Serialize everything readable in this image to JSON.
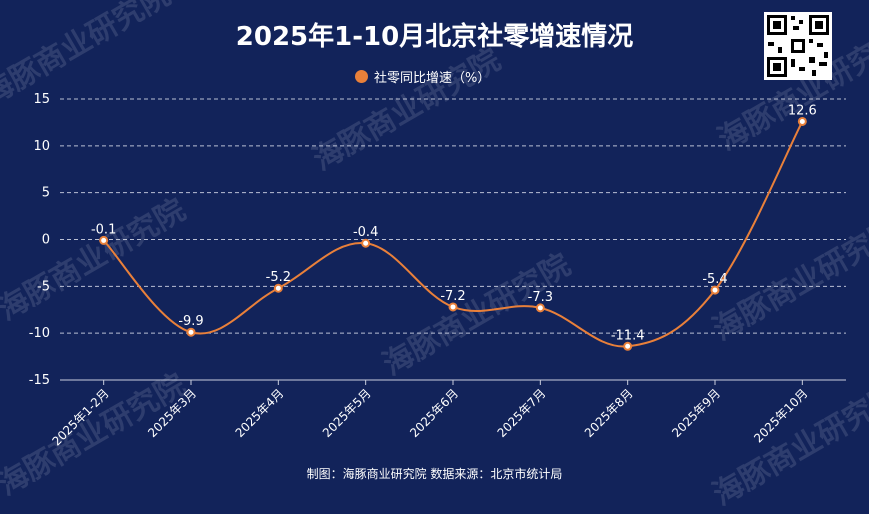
{
  "title": "2025年1-10月北京社零增速情况",
  "legend": {
    "label": "社零同比增速（%）",
    "color": "#e9803a"
  },
  "source": "制图：海豚商业研究院 数据来源：北京市统计局",
  "watermark": "海豚商业研究院",
  "colors": {
    "background": "#12235a",
    "line": "#e9803a",
    "grid": "#d8dcea",
    "text": "#ffffff"
  },
  "chart_data": {
    "type": "line",
    "categories": [
      "2025年1-2月",
      "2025年3月",
      "2025年4月",
      "2025年5月",
      "2025年6月",
      "2025年7月",
      "2025年8月",
      "2025年9月",
      "2025年10月"
    ],
    "series": [
      {
        "name": "社零同比增速（%）",
        "values": [
          -0.1,
          -9.9,
          -5.2,
          -0.4,
          -7.2,
          -7.3,
          -11.4,
          -5.4,
          12.6
        ]
      }
    ],
    "yticks": [
      15,
      10,
      5,
      0,
      -5,
      -10,
      -15
    ],
    "ylim": [
      -15,
      15
    ],
    "grid": true,
    "smooth": true,
    "data_labels": true,
    "legend_position": "top-center"
  }
}
